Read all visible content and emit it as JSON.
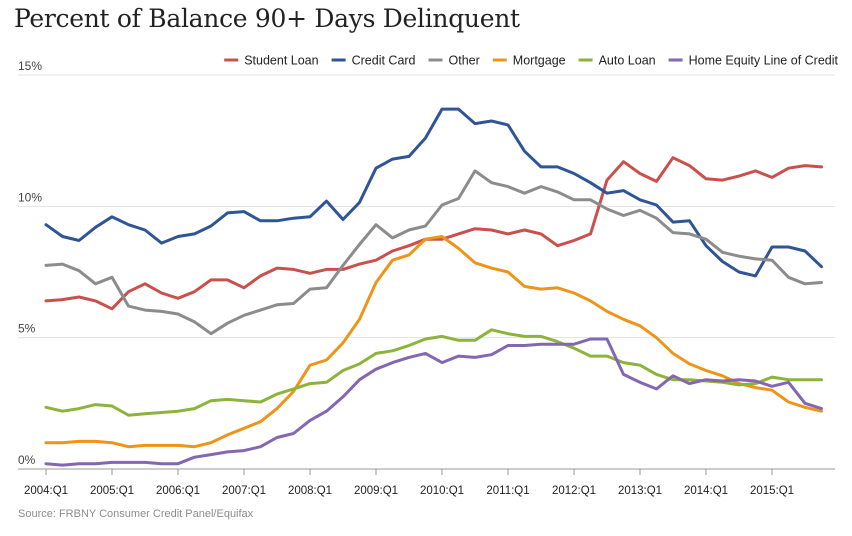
{
  "title": "Percent of Balance 90+ Days Delinquent",
  "source": "Source: FRBNY Consumer Credit Panel/Equifax",
  "chart_data": {
    "type": "line",
    "title": "Percent of Balance 90+ Days Delinquent",
    "xlabel": "",
    "ylabel": "",
    "ylim": [
      0,
      15
    ],
    "y_ticks": [
      {
        "value": 0,
        "label": "0%"
      },
      {
        "value": 5,
        "label": "5%"
      },
      {
        "value": 10,
        "label": "10%"
      },
      {
        "value": 15,
        "label": "15%"
      }
    ],
    "x_ticks": [
      "2004:Q1",
      "2005:Q1",
      "2006:Q1",
      "2007:Q1",
      "2008:Q1",
      "2009:Q1",
      "2010:Q1",
      "2011:Q1",
      "2012:Q1",
      "2013:Q1",
      "2014:Q1",
      "2015:Q1"
    ],
    "x_start": "2004:Q1",
    "x_end": "2015:Q4",
    "grid": "horizontal",
    "legend": "top-right",
    "series": [
      {
        "name": "Student Loan",
        "color": "#c9504c",
        "values": [
          6.4,
          6.45,
          6.55,
          6.4,
          6.1,
          6.75,
          7.05,
          6.7,
          6.5,
          6.75,
          7.2,
          7.2,
          6.9,
          7.35,
          7.65,
          7.6,
          7.45,
          7.6,
          7.6,
          7.8,
          7.95,
          8.3,
          8.5,
          8.75,
          8.75,
          8.95,
          9.15,
          9.1,
          8.95,
          9.1,
          8.95,
          8.5,
          8.7,
          8.95,
          11.0,
          11.7,
          11.25,
          10.95,
          11.85,
          11.55,
          11.05,
          11.0,
          11.15,
          11.35,
          11.1,
          11.45,
          11.55,
          11.5
        ]
      },
      {
        "name": "Credit Card",
        "color": "#2f5597",
        "values": [
          9.3,
          8.85,
          8.7,
          9.2,
          9.6,
          9.3,
          9.1,
          8.6,
          8.85,
          8.95,
          9.25,
          9.75,
          9.8,
          9.45,
          9.45,
          9.55,
          9.6,
          10.2,
          9.5,
          10.15,
          11.45,
          11.8,
          11.9,
          12.6,
          13.7,
          13.7,
          13.15,
          13.25,
          13.1,
          12.1,
          11.5,
          11.5,
          11.25,
          10.9,
          10.5,
          10.6,
          10.25,
          10.05,
          9.4,
          9.45,
          8.5,
          7.9,
          7.5,
          7.35,
          8.45,
          8.45,
          8.3,
          7.7
        ]
      },
      {
        "name": "Other",
        "color": "#8c8c8c",
        "values": [
          7.75,
          7.8,
          7.55,
          7.05,
          7.3,
          6.2,
          6.05,
          6.0,
          5.9,
          5.6,
          5.15,
          5.55,
          5.85,
          6.05,
          6.25,
          6.3,
          6.85,
          6.9,
          7.75,
          8.55,
          9.3,
          8.8,
          9.1,
          9.25,
          10.05,
          10.3,
          11.35,
          10.9,
          10.75,
          10.5,
          10.75,
          10.55,
          10.25,
          10.25,
          9.9,
          9.65,
          9.85,
          9.55,
          9.0,
          8.95,
          8.75,
          8.25,
          8.1,
          8.0,
          7.95,
          7.3,
          7.05,
          7.1
        ]
      },
      {
        "name": "Mortgage",
        "color": "#ee9418",
        "values": [
          1.0,
          1.0,
          1.05,
          1.05,
          1.0,
          0.85,
          0.9,
          0.9,
          0.9,
          0.85,
          1.0,
          1.3,
          1.55,
          1.8,
          2.3,
          2.95,
          3.95,
          4.15,
          4.8,
          5.7,
          7.1,
          7.95,
          8.15,
          8.75,
          8.85,
          8.4,
          7.85,
          7.65,
          7.5,
          6.95,
          6.85,
          6.9,
          6.7,
          6.4,
          6.0,
          5.7,
          5.45,
          5.0,
          4.4,
          4.0,
          3.75,
          3.55,
          3.25,
          3.1,
          3.0,
          2.55,
          2.35,
          2.2
        ]
      },
      {
        "name": "Auto Loan",
        "color": "#8eb33a",
        "values": [
          2.35,
          2.2,
          2.3,
          2.45,
          2.4,
          2.05,
          2.1,
          2.15,
          2.2,
          2.3,
          2.6,
          2.65,
          2.6,
          2.55,
          2.85,
          3.05,
          3.25,
          3.3,
          3.75,
          4.0,
          4.4,
          4.5,
          4.7,
          4.95,
          5.05,
          4.9,
          4.9,
          5.3,
          5.15,
          5.05,
          5.05,
          4.85,
          4.6,
          4.3,
          4.3,
          4.05,
          3.95,
          3.6,
          3.4,
          3.4,
          3.35,
          3.3,
          3.2,
          3.25,
          3.5,
          3.4,
          3.4,
          3.4
        ]
      },
      {
        "name": "Home Equity Line of Credit",
        "color": "#8466b2",
        "values": [
          0.2,
          0.15,
          0.2,
          0.2,
          0.25,
          0.25,
          0.25,
          0.2,
          0.2,
          0.45,
          0.55,
          0.65,
          0.7,
          0.85,
          1.2,
          1.35,
          1.85,
          2.2,
          2.75,
          3.4,
          3.8,
          4.05,
          4.25,
          4.4,
          4.05,
          4.3,
          4.25,
          4.35,
          4.7,
          4.7,
          4.75,
          4.75,
          4.75,
          4.95,
          4.95,
          3.6,
          3.3,
          3.05,
          3.55,
          3.25,
          3.4,
          3.35,
          3.4,
          3.35,
          3.15,
          3.3,
          2.5,
          2.3
        ]
      }
    ]
  }
}
